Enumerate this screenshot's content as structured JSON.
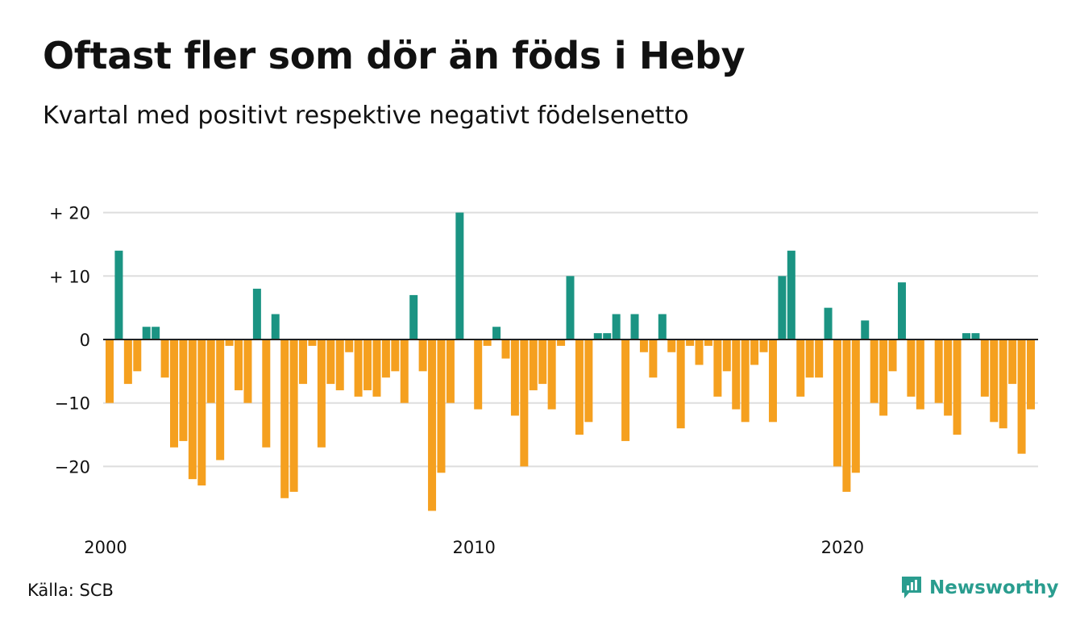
{
  "title": "Oftast fler som dör än föds i Heby",
  "subtitle": "Kvartal med positivt respektive negativt födelsenetto",
  "source": "Källa: SCB",
  "brand": {
    "name": "Newsworthy",
    "icon": "newsworthy-logo-icon",
    "color": "#2a9d8f"
  },
  "colors": {
    "positive": "#1b9483",
    "negative": "#f5a01f",
    "grid": "#dddddd",
    "zero": "#222222"
  },
  "chart_data": {
    "type": "bar",
    "title": "Oftast fler som dör än föds i Heby",
    "subtitle": "Kvartal med positivt respektive negativt födelsenetto",
    "x_unit": "quarter",
    "x_start": "2000 Q1",
    "x_tick_labels": [
      "2000",
      "2010",
      "2020"
    ],
    "y_tick_labels": [
      "+ 20",
      "+ 10",
      "0",
      "−10",
      "−20"
    ],
    "y_ticks": [
      20,
      10,
      0,
      -10,
      -20
    ],
    "ylim": [
      -30,
      22
    ],
    "grid": true,
    "values": [
      -10,
      14,
      -7,
      -5,
      2,
      2,
      -6,
      -17,
      -16,
      -22,
      -23,
      -10,
      -19,
      -1,
      -8,
      -10,
      8,
      -17,
      4,
      -25,
      -24,
      -7,
      -1,
      -17,
      -7,
      -8,
      -2,
      -9,
      -8,
      -9,
      -6,
      -5,
      -10,
      7,
      -5,
      -27,
      -21,
      -10,
      20,
      0,
      -11,
      -1,
      2,
      -3,
      -12,
      -20,
      -8,
      -7,
      -11,
      -1,
      10,
      -15,
      -13,
      1,
      1,
      4,
      -16,
      4,
      -2,
      -6,
      4,
      -2,
      -14,
      -1,
      -4,
      -1,
      -9,
      -5,
      -11,
      -13,
      -4,
      -2,
      -13,
      10,
      14,
      -9,
      -6,
      -6,
      5,
      -20,
      -24,
      -21,
      3,
      -10,
      -12,
      -5,
      9,
      -9,
      -11,
      0,
      -10,
      -12,
      -15,
      1,
      1,
      -9,
      -13,
      -14,
      -7,
      -18,
      -11
    ]
  }
}
